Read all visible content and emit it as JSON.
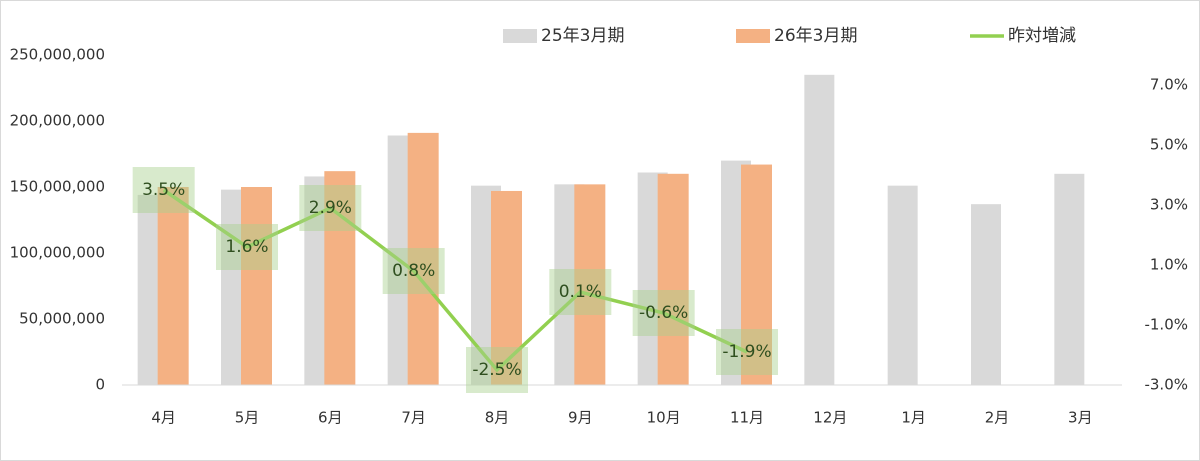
{
  "chart_data": {
    "type": "bar_line",
    "categories": [
      "4月",
      "5月",
      "6月",
      "7月",
      "8月",
      "9月",
      "10月",
      "11月",
      "12月",
      "1月",
      "2月",
      "3月"
    ],
    "series": [
      {
        "name": "25年3月期",
        "color": "#d9d9d9",
        "values": [
          144000000,
          148000000,
          158000000,
          189000000,
          151000000,
          152000000,
          161000000,
          170000000,
          235000000,
          151000000,
          137000000,
          160000000
        ]
      },
      {
        "name": "26年3月期",
        "color": "#f4b183",
        "values": [
          150000000,
          150000000,
          162000000,
          191000000,
          147000000,
          152000000,
          160000000,
          167000000,
          null,
          null,
          null,
          null
        ]
      },
      {
        "name": "昨対増減",
        "color": "#92d050",
        "axis": "y2",
        "values": [
          3.5,
          1.6,
          2.9,
          0.8,
          -2.5,
          0.1,
          -0.6,
          -1.9,
          null,
          null,
          null,
          null
        ],
        "value_labels": [
          "3.5%",
          "1.6%",
          "2.9%",
          "0.8%",
          "-2.5%",
          "0.1%",
          "-0.6%",
          "-1.9%",
          null,
          null,
          null,
          null
        ]
      }
    ],
    "ylim": [
      0,
      250000000
    ],
    "yticks": [
      0,
      {
        "value": 50000000,
        "label": "50,000,000"
      },
      {
        "value": 100000000,
        "label": "100,000,000"
      },
      {
        "value": 150000000,
        "label": "150,000,000"
      },
      {
        "value": 200000000,
        "label": "200,000,000"
      },
      {
        "value": 250000000,
        "label": "250,000,000"
      }
    ],
    "y2lim": [
      -3,
      8
    ],
    "y2ticks": [
      {
        "value": -3,
        "label": "-3.0%"
      },
      {
        "value": -1,
        "label": "-1.0%"
      },
      {
        "value": 1,
        "label": "1.0%"
      },
      {
        "value": 3,
        "label": "3.0%"
      },
      {
        "value": 5,
        "label": "5.0%"
      },
      {
        "value": 7,
        "label": "7.0%"
      }
    ],
    "legend": "top"
  }
}
